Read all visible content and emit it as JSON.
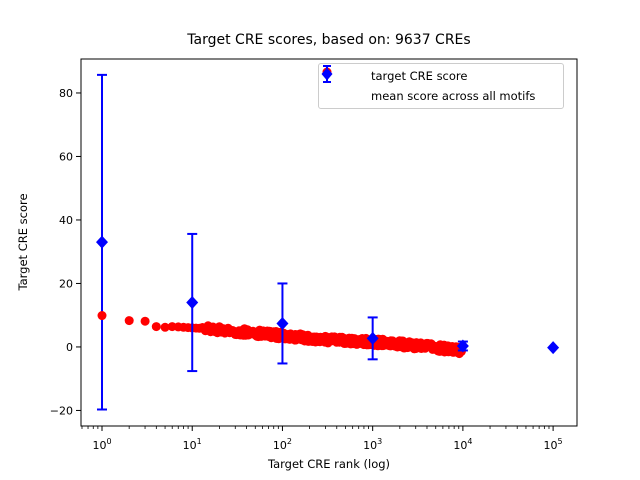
{
  "figure": {
    "background": "#ffffff",
    "frame_color": "#000000"
  },
  "legend": {
    "position": "upper right",
    "items": [
      {
        "label": "target CRE score",
        "marker": "red-circle",
        "color": "#ff0000"
      },
      {
        "label": "mean score across all motifs",
        "marker": "blue-diamond-errorbar",
        "color": "#0000ff"
      }
    ]
  },
  "chart_data": {
    "type": "scatter",
    "title": "Target CRE scores, based on: 9637 CREs",
    "xlabel": "Target CRE rank (log)",
    "ylabel": "Target CRE score",
    "x_scale": "log",
    "xlim": [
      0.585,
      184000
    ],
    "ylim": [
      -24.9,
      90.7
    ],
    "x_major_tick_exponents": [
      0,
      1,
      2,
      3,
      4,
      5
    ],
    "y_ticks": [
      -20,
      0,
      20,
      40,
      60,
      80
    ],
    "grid": false,
    "legend_position": "upper right",
    "series": [
      {
        "name": "target CRE score",
        "type": "scatter",
        "color": "#ff0000",
        "marker": "circle",
        "marker_size_px": 9,
        "n_points_plotted": 9637,
        "band_jitter": 1.1,
        "trend_anchors_log": [
          [
            1,
            9.9
          ],
          [
            2,
            8.3
          ],
          [
            3,
            8.1
          ],
          [
            4,
            6.4
          ],
          [
            5,
            6.2
          ],
          [
            6,
            6.4
          ],
          [
            7,
            6.3
          ],
          [
            8,
            6.2
          ],
          [
            9,
            6.1
          ],
          [
            10,
            6.0
          ],
          [
            15,
            5.7
          ],
          [
            20,
            5.4
          ],
          [
            30,
            4.9
          ],
          [
            50,
            4.4
          ],
          [
            70,
            4.1
          ],
          [
            100,
            3.5
          ],
          [
            150,
            3.1
          ],
          [
            200,
            2.8
          ],
          [
            300,
            2.4
          ],
          [
            500,
            2.0
          ],
          [
            700,
            1.8
          ],
          [
            1000,
            1.5
          ],
          [
            1500,
            1.2
          ],
          [
            2000,
            0.9
          ],
          [
            3000,
            0.4
          ],
          [
            5000,
            -0.2
          ],
          [
            7000,
            -0.7
          ],
          [
            9637,
            -1.1
          ]
        ]
      },
      {
        "name": "mean score across all motifs",
        "type": "errorbar",
        "color": "#0000ff",
        "marker": "diamond",
        "marker_size_px": 12,
        "points": [
          {
            "x": 1,
            "mean": 33.0,
            "err": 52.7
          },
          {
            "x": 10,
            "mean": 14.0,
            "err": 21.6
          },
          {
            "x": 100,
            "mean": 7.4,
            "err": 12.6
          },
          {
            "x": 1000,
            "mean": 2.7,
            "err": 6.6
          },
          {
            "x": 10000,
            "mean": 0.3,
            "err": 1.4
          },
          {
            "x": 100000,
            "mean": -0.2,
            "err": 0
          }
        ]
      }
    ]
  }
}
